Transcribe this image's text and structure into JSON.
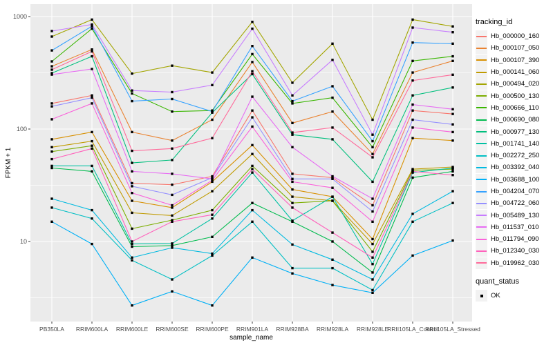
{
  "figure": {
    "background": "#FFFFFF",
    "panel_background": "#EBEBEB",
    "grid_color": "#FFFFFF",
    "tick_color": "#333333",
    "tick_label_color": "#4D4D4D",
    "point_color": "#000000"
  },
  "legend": {
    "tracking_title": "tracking_id",
    "quant_title": "quant_status",
    "quant_items": [
      {
        "label": "OK"
      }
    ]
  },
  "chart_data": {
    "type": "line",
    "title": "",
    "xlabel": "sample_name",
    "ylabel": "FPKM + 1",
    "y_scale": "log10",
    "ylim": [
      1.94,
      1290
    ],
    "y_ticks": [
      1000,
      100,
      10
    ],
    "y_minor_ticks": [
      316,
      31.6,
      3.16
    ],
    "grid": true,
    "legend_position": "right",
    "point_shape": "filled-square",
    "categories": [
      "PB350LA",
      "RRIM600LA",
      "RRIM600LE",
      "RRIM600SE",
      "RRIM600PE",
      "RRIM901LA",
      "RRIM928BA",
      "RRIM928LA",
      "RRIM928LE",
      "RRII105LA_Control",
      "RRII105LA_Stressed"
    ],
    "series": [
      {
        "name": "Hb_000000_160",
        "color": "#F8766D",
        "values": [
          169,
          199,
          33,
          32,
          38,
          146,
          40,
          37,
          21,
          146,
          136
        ]
      },
      {
        "name": "Hb_000107_050",
        "color": "#EA8331",
        "values": [
          361,
          510,
          94,
          79,
          121,
          394,
          113,
          143,
          60,
          318,
          403
        ]
      },
      {
        "name": "Hb_000107_390",
        "color": "#D89000",
        "values": [
          81,
          94,
          23,
          20,
          34,
          72,
          29,
          25,
          10.5,
          83,
          79
        ]
      },
      {
        "name": "Hb_000141_060",
        "color": "#C09B00",
        "values": [
          69,
          78,
          18,
          17,
          28,
          60,
          25,
          23,
          9.5,
          44,
          46
        ]
      },
      {
        "name": "Hb_000494_020",
        "color": "#A3A500",
        "values": [
          664,
          940,
          311,
          366,
          318,
          897,
          258,
          574,
          121,
          940,
          817
        ]
      },
      {
        "name": "Hb_000500_130",
        "color": "#7CAE00",
        "values": [
          63,
          71,
          13,
          15.5,
          19,
          47,
          22,
          23,
          8.1,
          43,
          44
        ]
      },
      {
        "name": "Hb_000666_110",
        "color": "#39B600",
        "values": [
          399,
          780,
          207,
          143,
          146,
          464,
          169,
          190,
          69,
          403,
          443
        ]
      },
      {
        "name": "Hb_000690_080",
        "color": "#00BB4E",
        "values": [
          45,
          42,
          9,
          9.2,
          11,
          22,
          15,
          10,
          5.3,
          37,
          42
        ]
      },
      {
        "name": "Hb_000977_130",
        "color": "#00BF7D",
        "values": [
          314,
          443,
          50,
          53,
          140,
          308,
          89,
          81,
          34,
          199,
          234
        ]
      },
      {
        "name": "Hb_001741_140",
        "color": "#00C1A3",
        "values": [
          47,
          47,
          9.5,
          9.6,
          16,
          41,
          15.3,
          25,
          6.3,
          41,
          45
        ]
      },
      {
        "name": "Hb_002272_250",
        "color": "#00BFC4",
        "values": [
          20,
          16,
          6.8,
          4.6,
          7.5,
          15,
          5.8,
          5.8,
          3.7,
          15,
          22
        ]
      },
      {
        "name": "Hb_003392_040",
        "color": "#00BAE0",
        "values": [
          24,
          19,
          7.2,
          8.8,
          7.8,
          19,
          9.4,
          6.9,
          4.6,
          17.6,
          28
        ]
      },
      {
        "name": "Hb_003688_100",
        "color": "#00B0F6",
        "values": [
          15,
          9.5,
          2.7,
          3.6,
          2.7,
          7.2,
          5.2,
          4.1,
          3.5,
          7.5,
          10.2
        ]
      },
      {
        "name": "Hb_004204_070",
        "color": "#35A2FF",
        "values": [
          500,
          820,
          177,
          185,
          143,
          547,
          177,
          240,
          78,
          587,
          574
        ]
      },
      {
        "name": "Hb_004722_060",
        "color": "#9590FF",
        "values": [
          159,
          190,
          31,
          26,
          37,
          127,
          36,
          36,
          18.5,
          121,
          110
        ]
      },
      {
        "name": "Hb_005489_130",
        "color": "#C77CFF",
        "values": [
          743,
          850,
          220,
          213,
          246,
          780,
          199,
          412,
          89,
          798,
          726
        ]
      },
      {
        "name": "Hb_011537_010",
        "color": "#E76BF3",
        "values": [
          305,
          342,
          42,
          40,
          36,
          194,
          69,
          38,
          24,
          165,
          150
        ]
      },
      {
        "name": "Hb_011794_090",
        "color": "#FA62DB",
        "values": [
          122,
          169,
          27,
          21,
          35,
          105,
          34,
          30,
          15,
          103,
          94
        ]
      },
      {
        "name": "Hb_012340_030",
        "color": "#FF62BC",
        "values": [
          54,
          67,
          10,
          15,
          17.3,
          44,
          20,
          12,
          7.2,
          42,
          39
        ]
      },
      {
        "name": "Hb_019962_030",
        "color": "#FF6A9A",
        "values": [
          337,
          490,
          64,
          67,
          83,
          326,
          93,
          103,
          56,
          270,
          304
        ]
      }
    ]
  }
}
